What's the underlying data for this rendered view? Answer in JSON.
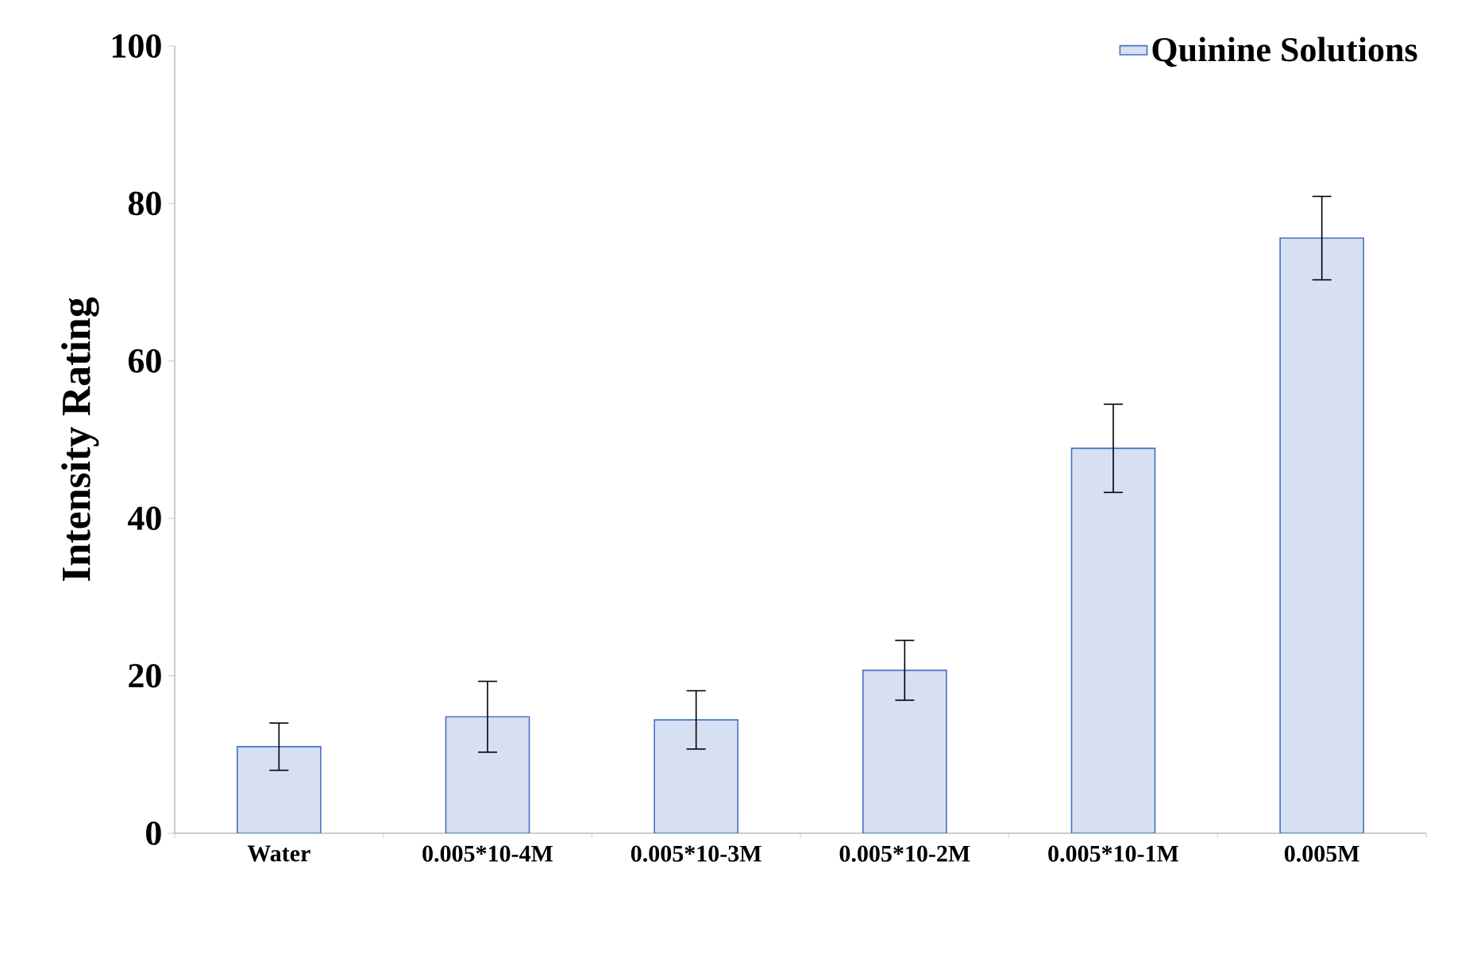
{
  "chart_data": {
    "type": "bar",
    "ylabel": "Intensity Rating",
    "categories": [
      "Water",
      "0.005*10-4M",
      "0.005*10-3M",
      "0.005*10-2M",
      "0.005*10-1M",
      "0.005M"
    ],
    "series": [
      {
        "name": "Quinine Solutions",
        "color": "#4472c4",
        "values": [
          11,
          14.8,
          14.4,
          20.7,
          48.9,
          75.6
        ],
        "errors": [
          3,
          4.5,
          3.7,
          3.8,
          5.6,
          5.3
        ]
      }
    ],
    "ylim": [
      0,
      100
    ],
    "yticks": [
      0,
      20,
      40,
      60,
      80,
      100
    ],
    "grid": false,
    "legend": "top right"
  }
}
